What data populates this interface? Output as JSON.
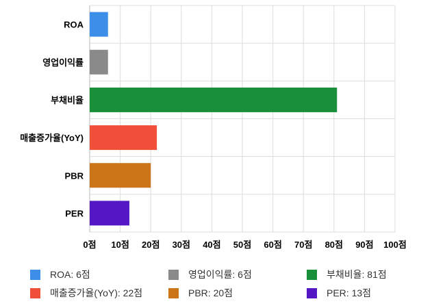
{
  "chart_data": {
    "type": "bar",
    "orientation": "horizontal",
    "categories": [
      "ROA",
      "영업이익률",
      "부채비율",
      "매출증가율(YoY)",
      "PBR",
      "PER"
    ],
    "values": [
      6,
      6,
      81,
      22,
      20,
      13
    ],
    "colors": [
      "#3d8ee8",
      "#8a8a8a",
      "#1a8f3a",
      "#f0503a",
      "#cc7518",
      "#5318c4"
    ],
    "xlim": [
      0,
      100
    ],
    "xticks": [
      "0점",
      "10점",
      "20점",
      "30점",
      "40점",
      "50점",
      "60점",
      "70점",
      "80점",
      "90점",
      "100점"
    ],
    "grid": true,
    "legend_position": "bottom",
    "legend": [
      {
        "label": "ROA: 6점",
        "color": "#3d8ee8"
      },
      {
        "label": "영업이익률: 6점",
        "color": "#8a8a8a"
      },
      {
        "label": "부채비율: 81점",
        "color": "#1a8f3a"
      },
      {
        "label": "매출증가율(YoY): 22점",
        "color": "#f0503a"
      },
      {
        "label": "PBR: 20점",
        "color": "#cc7518"
      },
      {
        "label": "PER: 13점",
        "color": "#5318c4"
      }
    ]
  }
}
